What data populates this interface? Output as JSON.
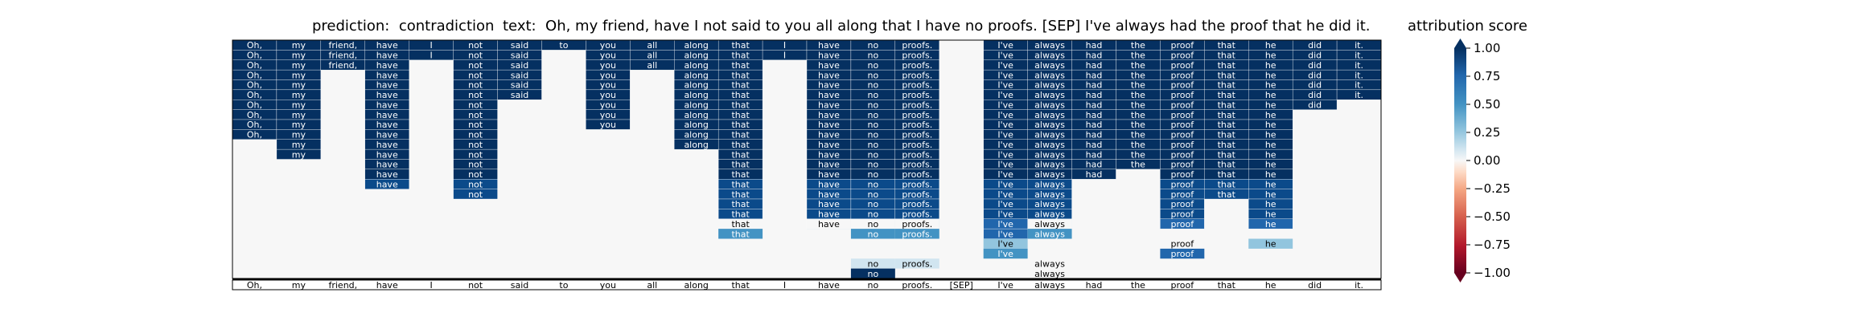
{
  "header": {
    "prediction": "prediction:  contradiction",
    "text": "text:  Oh, my friend, have I not said to you all along that I have no proofs. [SEP] I've always had the proof that he did it.",
    "colorbar_title": "attribution score"
  },
  "colors": {
    "darkest": "#053061",
    "dark_blue": "#0b4a8a",
    "mid_blue": "#2166ac",
    "steel_blue": "#4393c3",
    "light_blue": "#92c5de",
    "pale_blue": "#d1e5f0",
    "neutral": "#f7f7f7",
    "pale_red": "#fddbc7",
    "light_red": "#f4a582",
    "mid_red": "#d6604d",
    "dark_red": "#b2182b",
    "darkest_red": "#67001f"
  },
  "chart_data": {
    "type": "heatmap",
    "x_tokens": [
      "Oh,",
      "my",
      "friend,",
      "have",
      "I",
      "not",
      "said",
      "to",
      "you",
      "all",
      "along",
      "that",
      "I",
      "have",
      "no",
      "proofs.",
      "[SEP]",
      "I've",
      "always",
      "had",
      "the",
      "proof",
      "that",
      "he",
      "did",
      "it."
    ],
    "row_count": 24,
    "column_fill_depth": [
      10,
      12,
      3,
      15,
      2,
      16,
      6,
      1,
      9,
      3,
      11,
      18,
      2,
      19,
      19,
      19,
      0,
      20,
      19,
      14,
      13,
      19,
      16,
      19,
      7,
      6
    ],
    "partial_cells": [
      {
        "row": 18,
        "col": 11,
        "level": "neutral",
        "text": "that"
      },
      {
        "row": 18,
        "col": 13,
        "level": "neutral",
        "text": "have"
      },
      {
        "row": 18,
        "col": 14,
        "level": "neutral",
        "text": "no"
      },
      {
        "row": 18,
        "col": 15,
        "level": "neutral",
        "text": "proofs."
      },
      {
        "row": 18,
        "col": 18,
        "level": "neutral",
        "text": "always"
      },
      {
        "row": 19,
        "col": 11,
        "level": "steel",
        "text": "that"
      },
      {
        "row": 19,
        "col": 14,
        "level": "steel",
        "text": "no"
      },
      {
        "row": 19,
        "col": 15,
        "level": "steel",
        "text": "proofs."
      },
      {
        "row": 19,
        "col": 18,
        "level": "steel",
        "text": "always"
      },
      {
        "row": 20,
        "col": 17,
        "level": "light",
        "text": "I've"
      },
      {
        "row": 20,
        "col": 21,
        "level": "neutral",
        "text": "proof"
      },
      {
        "row": 20,
        "col": 23,
        "level": "light",
        "text": "he"
      },
      {
        "row": 21,
        "col": 17,
        "level": "steel",
        "text": "I've"
      },
      {
        "row": 21,
        "col": 21,
        "level": "blue",
        "text": "proof"
      },
      {
        "row": 22,
        "col": 14,
        "level": "pale",
        "text": "no"
      },
      {
        "row": 22,
        "col": 15,
        "level": "pale",
        "text": "proofs."
      },
      {
        "row": 22,
        "col": 18,
        "level": "neutral",
        "text": "always"
      },
      {
        "row": 23,
        "col": 14,
        "level": "darkest",
        "text": "no"
      },
      {
        "row": 23,
        "col": 18,
        "level": "neutral",
        "text": "always"
      }
    ],
    "colorbar": {
      "range": [
        -1.0,
        1.0
      ],
      "ticks": [
        "1.00",
        "0.75",
        "0.50",
        "0.25",
        "0.00",
        "−0.25",
        "−0.50",
        "−0.75",
        "−1.00"
      ],
      "tick_values": [
        1.0,
        0.75,
        0.5,
        0.25,
        0.0,
        -0.25,
        -0.5,
        -0.75,
        -1.0
      ],
      "colormap": "RdBu"
    }
  }
}
